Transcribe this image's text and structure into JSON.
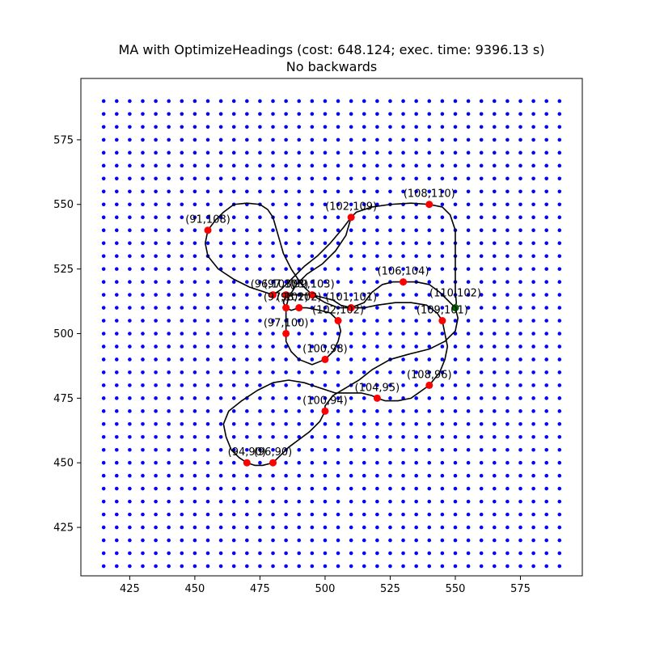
{
  "chart_data": {
    "type": "scatter",
    "title": "MA with OptimizeHeadings (cost: 648.124; exec. time: 9396.13 s)",
    "subtitle": "No backwards",
    "xlabel": "",
    "ylabel": "",
    "xlim": [
      406.25,
      598.75
    ],
    "ylim": [
      406.25,
      598.75
    ],
    "x_ticks": [
      425,
      450,
      475,
      500,
      525,
      550,
      575
    ],
    "y_ticks": [
      425,
      450,
      475,
      500,
      525,
      550,
      575
    ],
    "grid": false,
    "grid_points": {
      "x_start": 415,
      "x_end": 590,
      "y_start": 410,
      "y_end": 590,
      "step": 5,
      "color": "#0000ff"
    },
    "targets": [
      {
        "label": "(91,108)",
        "x": 455,
        "y": 540
      },
      {
        "label": "(102,109)",
        "x": 510,
        "y": 545
      },
      {
        "label": "(108,110)",
        "x": 540,
        "y": 550
      },
      {
        "label": "(96,103)",
        "x": 480,
        "y": 515
      },
      {
        "label": "(97,103)",
        "x": 485,
        "y": 515
      },
      {
        "label": "(99,103)",
        "x": 495,
        "y": 515
      },
      {
        "label": "(97,102)",
        "x": 485,
        "y": 510
      },
      {
        "label": "(98,102)",
        "x": 490,
        "y": 510
      },
      {
        "label": "(102,102)",
        "x": 505,
        "y": 505
      },
      {
        "label": "(101,101)",
        "x": 510,
        "y": 510
      },
      {
        "label": "(106,104)",
        "x": 530,
        "y": 520
      },
      {
        "label": "(109,101)",
        "x": 545,
        "y": 505
      },
      {
        "label": "(97,100)",
        "x": 485,
        "y": 500
      },
      {
        "label": "(100,98)",
        "x": 500,
        "y": 490
      },
      {
        "label": "(108,96)",
        "x": 540,
        "y": 480
      },
      {
        "label": "(104,95)",
        "x": 520,
        "y": 475
      },
      {
        "label": "(100,94)",
        "x": 500,
        "y": 470
      },
      {
        "label": "(94,90)",
        "x": 470,
        "y": 450
      },
      {
        "label": "(96,90)",
        "x": 480,
        "y": 450
      }
    ],
    "start": {
      "label": "(110,102)",
      "x": 550,
      "y": 510
    },
    "colors": {
      "grid_points": "#0000ff",
      "targets": "#ff0000",
      "start": "#006400",
      "path": "#000000"
    },
    "path": [
      [
        550,
        510
      ],
      [
        550.4,
        512
      ],
      [
        550,
        516
      ],
      [
        550,
        522
      ],
      [
        550,
        530
      ],
      [
        550,
        540
      ],
      [
        548,
        546
      ],
      [
        545,
        549
      ],
      [
        540,
        550
      ],
      [
        533,
        550.5
      ],
      [
        525,
        550
      ],
      [
        518,
        549
      ],
      [
        512,
        547
      ],
      [
        510,
        545
      ],
      [
        507,
        541
      ],
      [
        502,
        535
      ],
      [
        497,
        530
      ],
      [
        492,
        526
      ],
      [
        487,
        521
      ],
      [
        483,
        517
      ],
      [
        480,
        515
      ],
      [
        477,
        516
      ],
      [
        471,
        518
      ],
      [
        465,
        521
      ],
      [
        459,
        525
      ],
      [
        455,
        530
      ],
      [
        454,
        535
      ],
      [
        455,
        540
      ],
      [
        458,
        544
      ],
      [
        461,
        547
      ],
      [
        465,
        550
      ],
      [
        470,
        550.5
      ],
      [
        475,
        550
      ],
      [
        478,
        548
      ],
      [
        480,
        545
      ],
      [
        482,
        538
      ],
      [
        484,
        531
      ],
      [
        487,
        525
      ],
      [
        491,
        519
      ],
      [
        495,
        515
      ],
      [
        500,
        512
      ],
      [
        505,
        510
      ],
      [
        510,
        510
      ],
      [
        515,
        512
      ],
      [
        518,
        516
      ],
      [
        522,
        519
      ],
      [
        526,
        520
      ],
      [
        530,
        520
      ],
      [
        535,
        520
      ],
      [
        540,
        519
      ],
      [
        544,
        516
      ],
      [
        547,
        513
      ],
      [
        550,
        510
      ],
      [
        551,
        506
      ],
      [
        550,
        501
      ],
      [
        546,
        497
      ],
      [
        540,
        494
      ],
      [
        532,
        492
      ],
      [
        525,
        490
      ],
      [
        518,
        486
      ],
      [
        513,
        482
      ],
      [
        508,
        479
      ],
      [
        503,
        476
      ],
      [
        500,
        472
      ],
      [
        500,
        470
      ],
      [
        498,
        466
      ],
      [
        494,
        462
      ],
      [
        490,
        459
      ],
      [
        486,
        456
      ],
      [
        482,
        452
      ],
      [
        480,
        450
      ],
      [
        476,
        449
      ],
      [
        473,
        449
      ],
      [
        470,
        450
      ],
      [
        467,
        452
      ],
      [
        464,
        455
      ],
      [
        462,
        460
      ],
      [
        461,
        465
      ],
      [
        463,
        470
      ],
      [
        468,
        474
      ],
      [
        474,
        478
      ],
      [
        480,
        481
      ],
      [
        486,
        482
      ],
      [
        492,
        481
      ],
      [
        498,
        479
      ],
      [
        504,
        477
      ],
      [
        509,
        477
      ],
      [
        514,
        477
      ],
      [
        518,
        476
      ],
      [
        520,
        475
      ],
      [
        523,
        474
      ],
      [
        528,
        474
      ],
      [
        533,
        475
      ],
      [
        540,
        480
      ],
      [
        544,
        485
      ],
      [
        546,
        490
      ],
      [
        547,
        495
      ],
      [
        546,
        500
      ],
      [
        545,
        505
      ],
      [
        543,
        508
      ],
      [
        539,
        511
      ],
      [
        533,
        512
      ],
      [
        527,
        512
      ],
      [
        520,
        511
      ],
      [
        515,
        510
      ],
      [
        510,
        510
      ],
      [
        506,
        511
      ],
      [
        503,
        513
      ],
      [
        499,
        514
      ],
      [
        495,
        515
      ],
      [
        490,
        515
      ],
      [
        485,
        515
      ],
      [
        484,
        512
      ],
      [
        485,
        510
      ],
      [
        487,
        509
      ],
      [
        490,
        510
      ],
      [
        493,
        510
      ],
      [
        498,
        509
      ],
      [
        502,
        508
      ],
      [
        505,
        505
      ],
      [
        506,
        501
      ],
      [
        505,
        497
      ],
      [
        503,
        493
      ],
      [
        500,
        490
      ],
      [
        495,
        488
      ],
      [
        490,
        490
      ],
      [
        487,
        493
      ],
      [
        485,
        497
      ],
      [
        485,
        500
      ],
      [
        485,
        505
      ],
      [
        485,
        510
      ],
      [
        486,
        514
      ],
      [
        489,
        519
      ],
      [
        493,
        523
      ],
      [
        499,
        527
      ],
      [
        504,
        532
      ],
      [
        508,
        538
      ],
      [
        510,
        545
      ]
    ]
  }
}
